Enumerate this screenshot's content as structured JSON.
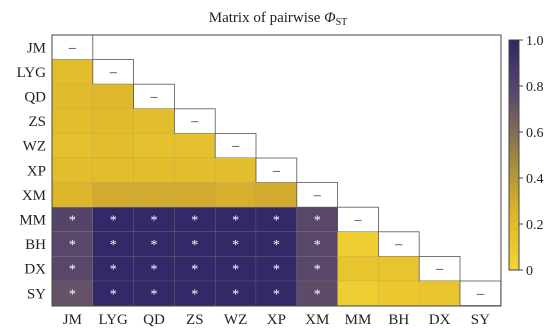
{
  "chart_data": {
    "type": "heatmap",
    "title": "Matrix of pairwise ",
    "title_symbol": "Φ",
    "title_subscript": "ST",
    "rows": [
      "JM",
      "LYG",
      "QD",
      "ZS",
      "WZ",
      "XP",
      "XM",
      "MM",
      "BH",
      "DX",
      "SY"
    ],
    "columns": [
      "JM",
      "LYG",
      "QD",
      "ZS",
      "WZ",
      "XP",
      "XM",
      "MM",
      "BH",
      "DX",
      "SY"
    ],
    "values": [
      [
        null,
        null,
        null,
        null,
        null,
        null,
        null,
        null,
        null,
        null,
        null
      ],
      [
        0.18,
        null,
        null,
        null,
        null,
        null,
        null,
        null,
        null,
        null,
        null
      ],
      [
        0.2,
        0.22,
        null,
        null,
        null,
        null,
        null,
        null,
        null,
        null,
        null
      ],
      [
        0.18,
        0.2,
        0.18,
        null,
        null,
        null,
        null,
        null,
        null,
        null,
        null
      ],
      [
        0.15,
        0.18,
        0.15,
        0.15,
        null,
        null,
        null,
        null,
        null,
        null,
        null
      ],
      [
        0.18,
        0.18,
        0.18,
        0.18,
        0.18,
        null,
        null,
        null,
        null,
        null,
        null
      ],
      [
        0.25,
        0.3,
        0.3,
        0.3,
        0.28,
        0.3,
        null,
        null,
        null,
        null,
        null
      ],
      [
        0.8,
        0.98,
        0.98,
        0.98,
        0.98,
        0.98,
        0.78,
        null,
        null,
        null,
        null
      ],
      [
        0.78,
        0.98,
        0.98,
        0.98,
        0.98,
        0.98,
        0.78,
        0.05,
        null,
        null,
        null
      ],
      [
        0.78,
        0.98,
        0.98,
        0.98,
        0.98,
        0.98,
        0.78,
        0.12,
        0.12,
        null,
        null
      ],
      [
        0.72,
        0.98,
        0.98,
        0.98,
        0.98,
        0.98,
        0.75,
        0.05,
        0.1,
        0.12,
        null
      ]
    ],
    "significant_mark": "*",
    "diagonal_mark": "–",
    "significant_rows_from": 7,
    "significant_cols_until": 6,
    "colorbar": {
      "min": 0,
      "max": 1,
      "ticks": [
        "0",
        "0.2",
        "0.4",
        "0.6",
        "0.8",
        "1.0"
      ],
      "colors": [
        "#F2D431",
        "#DDB52A",
        "#9C8546",
        "#5E4B6A",
        "#2E2668"
      ]
    }
  }
}
